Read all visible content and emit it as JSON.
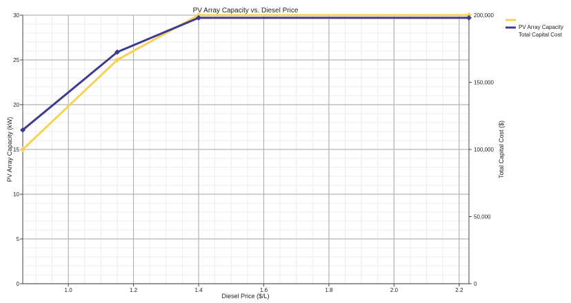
{
  "chart_data": {
    "type": "line",
    "title": "PV Array Capacity vs. Diesel Price",
    "xlabel": "Diesel Price ($/L)",
    "ylabel": "PV Array Capacity (kW)",
    "y2label": "Total Capital Cost ($)",
    "xlim": [
      0.86,
      2.23
    ],
    "ylim": [
      0,
      30
    ],
    "y2lim": [
      0,
      200000
    ],
    "x_ticks": [
      1.0,
      1.2,
      1.4,
      1.6,
      1.8,
      2.0,
      2.2
    ],
    "x_tick_labels": [
      "1.0",
      "1.2",
      "1.4",
      "1.6",
      "1.8",
      "2.0",
      "2.2"
    ],
    "y_ticks": [
      0,
      5,
      10,
      15,
      20,
      25,
      30
    ],
    "y_tick_labels": [
      "0",
      "5",
      "10",
      "15",
      "20",
      "25",
      "30"
    ],
    "y2_ticks": [
      0,
      50000,
      100000,
      150000,
      200000
    ],
    "y2_tick_labels": [
      "0",
      "50,000",
      "100,000",
      "150,000",
      "200,000"
    ],
    "grid": true,
    "legend_position": "top-right",
    "series": [
      {
        "name": "PV Array Capacity",
        "axis": "left",
        "color": "#f7d154",
        "marker": "diamond",
        "x": [
          0.86,
          1.15,
          1.4,
          2.23
        ],
        "values": [
          15,
          25,
          30,
          30
        ]
      },
      {
        "name": "Total Capital Cost",
        "axis": "right",
        "color": "#3d3a8f",
        "marker": "diamond",
        "x": [
          0.86,
          1.15,
          1.4,
          2.23
        ],
        "values": [
          114500,
          172500,
          198000,
          198000
        ]
      }
    ]
  }
}
